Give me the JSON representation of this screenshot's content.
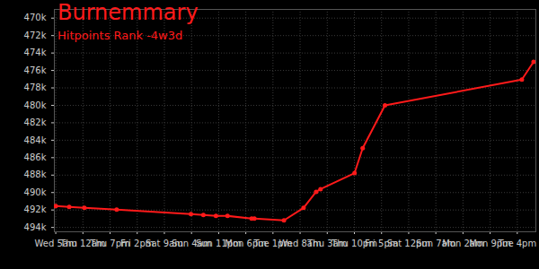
{
  "chart_data": {
    "type": "line",
    "title": "Burnemmary",
    "subtitle": "Hitpoints Rank -4w3d",
    "color": "#ff1a1a",
    "marker": "circle",
    "grid": true,
    "x": [
      0,
      9.4,
      20,
      42.6,
      94.6,
      103.3,
      112.1,
      120.2,
      137.1,
      139,
      159.7,
      173.4,
      182.2,
      185.3,
      209.1,
      214.8,
      230.4,
      326.2,
      334.4
    ],
    "values": [
      491550,
      491650,
      491760,
      491960,
      492470,
      492570,
      492680,
      492680,
      492980,
      492980,
      493190,
      491760,
      489920,
      489610,
      487770,
      484910,
      480010,
      477050,
      475010
    ],
    "xlim": [
      -1,
      336
    ],
    "xticks": [
      {
        "value": 0,
        "label": "Wed 5am"
      },
      {
        "value": 19,
        "label": "Thu 12am"
      },
      {
        "value": 38,
        "label": "Thu 7pm"
      },
      {
        "value": 57,
        "label": "Fri 2pm"
      },
      {
        "value": 76,
        "label": "Sat 9am"
      },
      {
        "value": 95,
        "label": "Sun 4am"
      },
      {
        "value": 114,
        "label": "Sun 11pm"
      },
      {
        "value": 133,
        "label": "Mon 6pm"
      },
      {
        "value": 152,
        "label": "Tue 1pm"
      },
      {
        "value": 171,
        "label": "Wed 8am"
      },
      {
        "value": 190,
        "label": "Thu 3am"
      },
      {
        "value": 209,
        "label": "Thu 10pm"
      },
      {
        "value": 228,
        "label": "Fri 5pm"
      },
      {
        "value": 247,
        "label": "Sat 12pm"
      },
      {
        "value": 266,
        "label": "Sun 7am"
      },
      {
        "value": 285,
        "label": "Mon 2am"
      },
      {
        "value": 304,
        "label": "Mon 9pm"
      },
      {
        "value": 323,
        "label": "Tue 4pm"
      }
    ],
    "ylim": [
      469000,
      494500
    ],
    "yticks": [
      {
        "value": 470000,
        "label": "470k"
      },
      {
        "value": 472000,
        "label": "472k"
      },
      {
        "value": 474000,
        "label": "474k"
      },
      {
        "value": 476000,
        "label": "476k"
      },
      {
        "value": 478000,
        "label": "478k"
      },
      {
        "value": 480000,
        "label": "480k"
      },
      {
        "value": 482000,
        "label": "482k"
      },
      {
        "value": 484000,
        "label": "484k"
      },
      {
        "value": 486000,
        "label": "486k"
      },
      {
        "value": 488000,
        "label": "488k"
      },
      {
        "value": 490000,
        "label": "490k"
      },
      {
        "value": 492000,
        "label": "492k"
      },
      {
        "value": 494000,
        "label": "494k"
      }
    ]
  }
}
